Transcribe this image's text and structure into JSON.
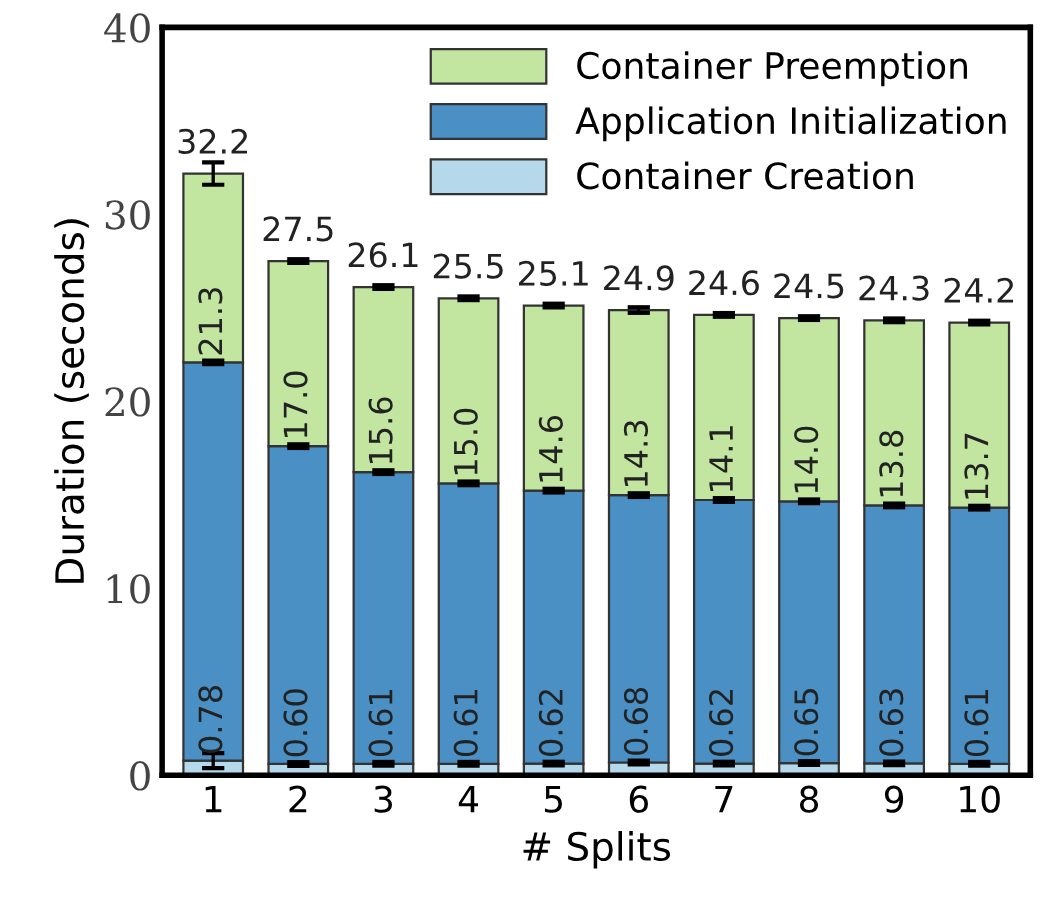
{
  "chart_data": {
    "type": "bar",
    "stacked": true,
    "xlabel": "# Splits",
    "ylabel": "Duration (seconds)",
    "categories": [
      "1",
      "2",
      "3",
      "4",
      "5",
      "6",
      "7",
      "8",
      "9",
      "10"
    ],
    "ylim": [
      0,
      40
    ],
    "yticks": [
      0,
      10,
      20,
      30,
      40
    ],
    "grid": false,
    "legend": "top right",
    "series": [
      {
        "name": "Container Creation",
        "color": "#b5d8ea",
        "values": [
          0.78,
          0.6,
          0.61,
          0.61,
          0.62,
          0.68,
          0.62,
          0.65,
          0.63,
          0.61
        ],
        "errors": [
          0.4,
          0.1,
          0.1,
          0.1,
          0.1,
          0.1,
          0.1,
          0.1,
          0.1,
          0.1
        ],
        "value_labels": [
          "0.78",
          "0.60",
          "0.61",
          "0.61",
          "0.62",
          "0.68",
          "0.62",
          "0.65",
          "0.63",
          "0.61"
        ]
      },
      {
        "name": "Application Initialization",
        "color": "#4a90c4",
        "values": [
          21.3,
          17.0,
          15.6,
          15.0,
          14.6,
          14.3,
          14.1,
          14.0,
          13.8,
          13.7
        ],
        "errors": [
          0.1,
          0.1,
          0.1,
          0.1,
          0.1,
          0.1,
          0.1,
          0.1,
          0.1,
          0.1
        ],
        "value_labels": [
          "21.3",
          "17.0",
          "15.6",
          "15.0",
          "14.6",
          "14.3",
          "14.1",
          "14.0",
          "13.8",
          "13.7"
        ]
      },
      {
        "name": "Container Preemption",
        "color": "#c2e5a0",
        "values": [
          10.1,
          9.9,
          9.9,
          9.9,
          9.9,
          9.9,
          9.9,
          9.8,
          9.9,
          9.9
        ],
        "errors": [
          0.6,
          0.1,
          0.1,
          0.1,
          0.1,
          0.15,
          0.1,
          0.1,
          0.1,
          0.1
        ]
      }
    ],
    "totals": [
      "32.2",
      "27.5",
      "26.1",
      "25.5",
      "25.1",
      "24.9",
      "24.6",
      "24.5",
      "24.3",
      "24.2"
    ]
  }
}
